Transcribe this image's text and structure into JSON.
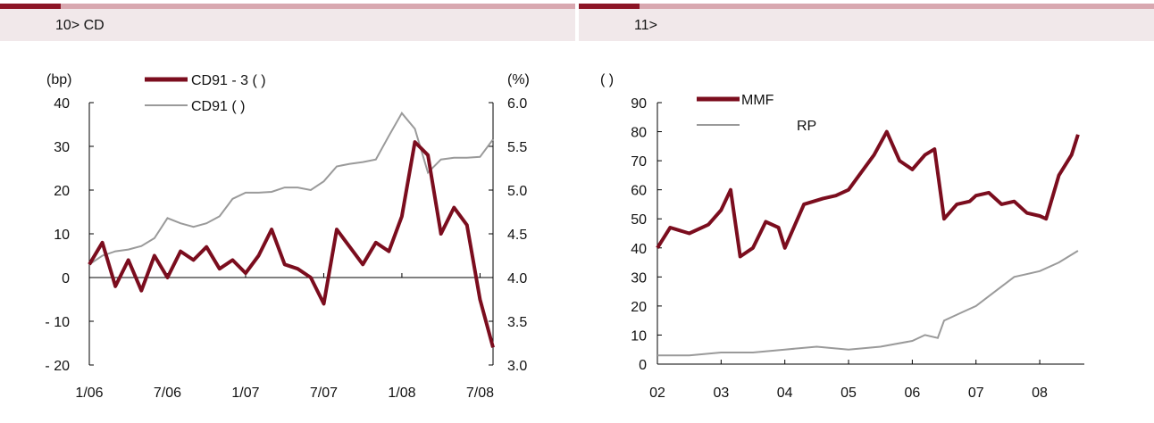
{
  "colors": {
    "accent": "#8c1526",
    "bar": "#d8a8b0",
    "titlebar_bg": "#f1e8ea",
    "series_dark": "#7b0d1e",
    "series_gray": "#9a9a9a"
  },
  "chart_data": [
    {
      "type": "line",
      "title": "10> CD",
      "x_tick_labels": [
        "1/06",
        "7/06",
        "1/07",
        "7/07",
        "1/08",
        "7/08"
      ],
      "xlim": [
        "2006-01",
        "2008-08"
      ],
      "left_axis": {
        "unit_label": "(bp)",
        "ylim": [
          -20,
          40
        ],
        "ticks": [
          40,
          30,
          20,
          10,
          0,
          -10,
          -20
        ],
        "tick_labels": [
          "40",
          "30",
          "20",
          "10",
          "0",
          "- 10",
          "- 20"
        ]
      },
      "right_axis": {
        "unit_label": "(%)",
        "ylim": [
          3.0,
          6.0
        ],
        "ticks": [
          6.0,
          5.5,
          5.0,
          4.5,
          4.0,
          3.5,
          3.0
        ],
        "tick_labels": [
          "6.0",
          "5.5",
          "5.0",
          "4.5",
          "4.0",
          "3.5",
          "3.0"
        ]
      },
      "legend": [
        "CD91 - 3 ( )",
        "CD91 ( )"
      ],
      "series": [
        {
          "name": "CD91 - 3 ( )",
          "axis": "left",
          "x": [
            "2006-01",
            "2006-02",
            "2006-03",
            "2006-04",
            "2006-05",
            "2006-06",
            "2006-07",
            "2006-08",
            "2006-09",
            "2006-10",
            "2006-11",
            "2006-12",
            "2007-01",
            "2007-02",
            "2007-03",
            "2007-04",
            "2007-05",
            "2007-06",
            "2007-07",
            "2007-08",
            "2007-09",
            "2007-10",
            "2007-11",
            "2007-12",
            "2008-01",
            "2008-02",
            "2008-03",
            "2008-04",
            "2008-05",
            "2008-06",
            "2008-07",
            "2008-08"
          ],
          "values": [
            3,
            8,
            -2,
            4,
            -3,
            5,
            0,
            6,
            4,
            7,
            2,
            4,
            1,
            5,
            11,
            3,
            2,
            0,
            -6,
            11,
            7,
            3,
            8,
            6,
            14,
            31,
            28,
            10,
            16,
            12,
            -5,
            -16
          ]
        },
        {
          "name": "CD91 ( )",
          "axis": "right",
          "x": [
            "2006-01",
            "2006-02",
            "2006-03",
            "2006-04",
            "2006-05",
            "2006-06",
            "2006-07",
            "2006-08",
            "2006-09",
            "2006-10",
            "2006-11",
            "2006-12",
            "2007-01",
            "2007-02",
            "2007-03",
            "2007-04",
            "2007-05",
            "2007-06",
            "2007-07",
            "2007-08",
            "2007-09",
            "2007-10",
            "2007-11",
            "2007-12",
            "2008-01",
            "2008-02",
            "2008-03",
            "2008-04",
            "2008-05",
            "2008-06",
            "2008-07",
            "2008-08"
          ],
          "values": [
            4.15,
            4.25,
            4.3,
            4.32,
            4.36,
            4.45,
            4.68,
            4.62,
            4.58,
            4.62,
            4.7,
            4.9,
            4.97,
            4.97,
            4.98,
            5.03,
            5.03,
            5.0,
            5.1,
            5.27,
            5.3,
            5.32,
            5.35,
            5.62,
            5.88,
            5.7,
            5.2,
            5.35,
            5.37,
            5.37,
            5.38,
            5.58
          ]
        }
      ]
    },
    {
      "type": "line",
      "title": "11>",
      "y_unit_label": "( )",
      "x_tick_labels": [
        "02",
        "03",
        "04",
        "05",
        "06",
        "07",
        "08"
      ],
      "xlim": [
        2002,
        2008.7
      ],
      "ylim": [
        0,
        90
      ],
      "y_ticks": [
        90,
        80,
        70,
        60,
        50,
        40,
        30,
        20,
        10,
        0
      ],
      "legend": [
        "MMF",
        "RP"
      ],
      "series": [
        {
          "name": "MMF",
          "x": [
            2002.0,
            2002.2,
            2002.5,
            2002.8,
            2003.0,
            2003.15,
            2003.3,
            2003.5,
            2003.7,
            2003.9,
            2004.0,
            2004.3,
            2004.6,
            2004.8,
            2005.0,
            2005.2,
            2005.4,
            2005.6,
            2005.8,
            2006.0,
            2006.2,
            2006.35,
            2006.5,
            2006.7,
            2006.9,
            2007.0,
            2007.2,
            2007.4,
            2007.6,
            2007.8,
            2008.0,
            2008.1,
            2008.3,
            2008.5,
            2008.6
          ],
          "values": [
            40,
            47,
            45,
            48,
            53,
            60,
            37,
            40,
            49,
            47,
            40,
            55,
            57,
            58,
            60,
            66,
            72,
            80,
            70,
            67,
            72,
            74,
            50,
            55,
            56,
            58,
            59,
            55,
            56,
            52,
            51,
            50,
            65,
            72,
            79
          ]
        },
        {
          "name": "RP",
          "x": [
            2002.0,
            2002.5,
            2003.0,
            2003.5,
            2004.0,
            2004.5,
            2005.0,
            2005.5,
            2006.0,
            2006.2,
            2006.4,
            2006.5,
            2006.8,
            2007.0,
            2007.3,
            2007.6,
            2008.0,
            2008.3,
            2008.6
          ],
          "values": [
            3,
            3,
            4,
            4,
            5,
            6,
            5,
            6,
            8,
            10,
            9,
            15,
            18,
            20,
            25,
            30,
            32,
            35,
            39
          ]
        }
      ]
    }
  ]
}
